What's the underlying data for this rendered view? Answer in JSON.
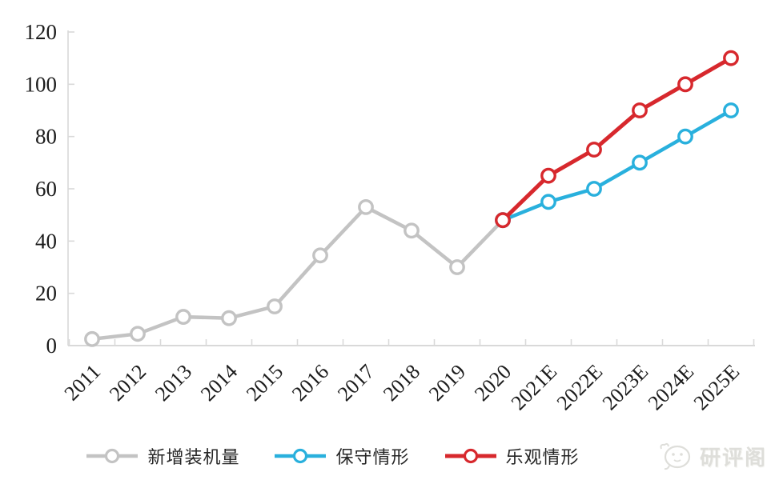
{
  "chart_data": {
    "type": "line",
    "title": "",
    "xlabel": "",
    "ylabel": "",
    "categories": [
      "2011",
      "2012",
      "2013",
      "2014",
      "2015",
      "2016",
      "2017",
      "2018",
      "2019",
      "2020",
      "2021E",
      "2022E",
      "2023E",
      "2024E",
      "2025E"
    ],
    "series": [
      {
        "name": "新增装机量",
        "color": "#c3c3c3",
        "marker": "circle-open",
        "values": [
          2.5,
          4.5,
          11,
          10.5,
          15,
          34.5,
          53,
          44,
          30,
          48,
          null,
          null,
          null,
          null,
          null
        ]
      },
      {
        "name": "保守情形",
        "color": "#29b0dd",
        "marker": "circle-open",
        "values": [
          null,
          null,
          null,
          null,
          null,
          null,
          null,
          null,
          null,
          48,
          55,
          60,
          70,
          80,
          90
        ]
      },
      {
        "name": "乐观情形",
        "color": "#d7282d",
        "marker": "circle-open",
        "values": [
          null,
          null,
          null,
          null,
          null,
          null,
          null,
          null,
          null,
          48,
          65,
          75,
          90,
          100,
          110
        ]
      }
    ],
    "ylim": [
      0,
      120
    ],
    "ytick_interval": 20,
    "yticks": [
      0,
      20,
      40,
      60,
      80,
      100,
      120
    ],
    "grid": false,
    "legend_position": "bottom",
    "axis_color": "#d9d9d9",
    "tick_label_color": "#1c1c1c"
  },
  "legend": {
    "items": [
      {
        "label": "新增装机量"
      },
      {
        "label": "保守情形"
      },
      {
        "label": "乐观情形"
      }
    ]
  },
  "watermark": {
    "text": "研评阁"
  }
}
